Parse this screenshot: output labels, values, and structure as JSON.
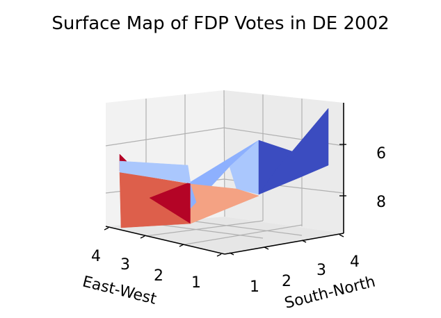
{
  "chart_data": {
    "type": "surface",
    "title": "Surface Map of FDP Votes in DE 2002",
    "xlabel": "East-West",
    "ylabel": "South-North",
    "zlabel": "",
    "x_ticks": [
      "1",
      "2",
      "3",
      "4"
    ],
    "y_ticks": [
      "1",
      "2",
      "3",
      "4"
    ],
    "z_ticks": [
      "6",
      "8"
    ],
    "z_axis_inverted": true,
    "colormap": "coolwarm",
    "grid": true,
    "colors": {
      "dark_red": "#b40426",
      "red": "#dd5f4b",
      "salmon": "#f4a283",
      "light_blue": "#aac7fd",
      "mid_blue": "#8db0fe",
      "dark_blue": "#3b4cc0",
      "pane": "#f2f2f2",
      "grid": "#b0b0b0"
    }
  }
}
